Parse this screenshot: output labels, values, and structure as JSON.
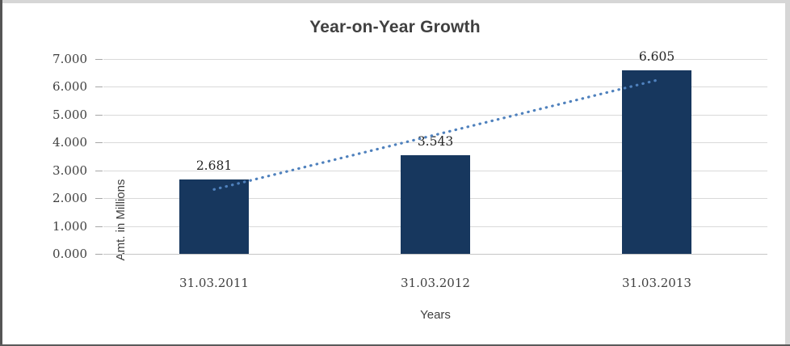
{
  "chart_data": {
    "type": "bar",
    "title": "Year-on-Year Growth",
    "xlabel": "Years",
    "ylabel": "Amt. in Millions",
    "categories": [
      "31.03.2011",
      "31.03.2012",
      "31.03.2013"
    ],
    "values": [
      2.681,
      3.543,
      6.605
    ],
    "data_labels": [
      "2.681",
      "3.543",
      "6.605"
    ],
    "y_ticks": [
      "0.000",
      "1.000",
      "2.000",
      "3.000",
      "4.000",
      "5.000",
      "6.000",
      "7.000"
    ],
    "ylim": [
      0,
      7
    ],
    "grid": "horizontal",
    "legend_position": "none",
    "bar_color": "#17375E",
    "gridline_color": "#d9d9d9",
    "trendline": {
      "style": "dotted",
      "color": "#4F81BD",
      "start_value": 2.314,
      "end_value": 6.238,
      "start_category_index": 0,
      "end_category_index": 2
    }
  }
}
